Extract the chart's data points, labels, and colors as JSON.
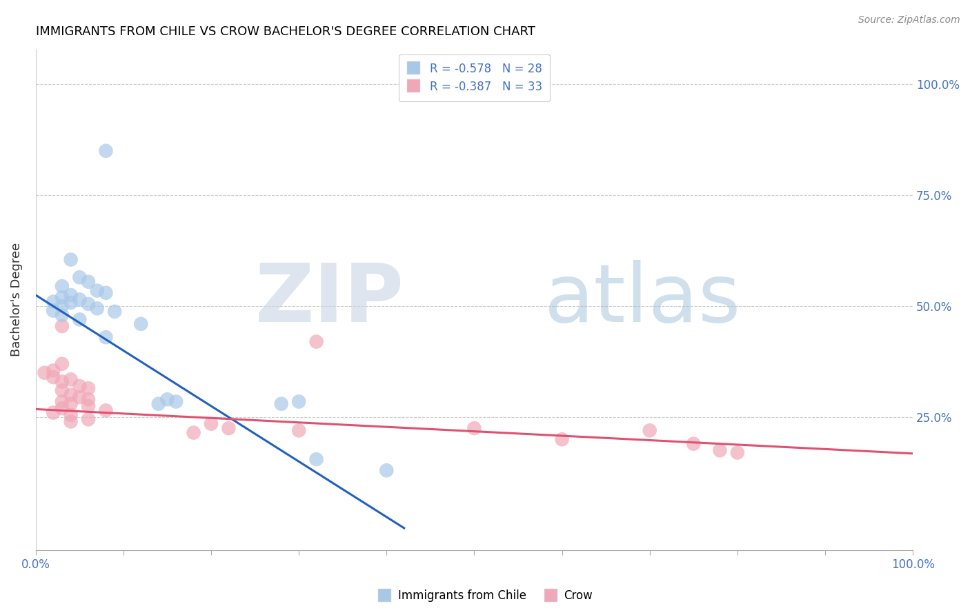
{
  "title": "IMMIGRANTS FROM CHILE VS CROW BACHELOR'S DEGREE CORRELATION CHART",
  "source": "Source: ZipAtlas.com",
  "ylabel": "Bachelor's Degree",
  "blue_color": "#A8C8E8",
  "pink_color": "#F0A8B8",
  "blue_line_color": "#2060C0",
  "pink_line_color": "#E05070",
  "blue_scatter": [
    [
      0.008,
      0.85
    ],
    [
      0.004,
      0.605
    ],
    [
      0.005,
      0.565
    ],
    [
      0.006,
      0.555
    ],
    [
      0.003,
      0.545
    ],
    [
      0.007,
      0.535
    ],
    [
      0.008,
      0.53
    ],
    [
      0.004,
      0.525
    ],
    [
      0.003,
      0.52
    ],
    [
      0.005,
      0.515
    ],
    [
      0.002,
      0.51
    ],
    [
      0.004,
      0.508
    ],
    [
      0.006,
      0.505
    ],
    [
      0.003,
      0.5
    ],
    [
      0.007,
      0.495
    ],
    [
      0.002,
      0.49
    ],
    [
      0.009,
      0.488
    ],
    [
      0.003,
      0.48
    ],
    [
      0.005,
      0.47
    ],
    [
      0.012,
      0.46
    ],
    [
      0.008,
      0.43
    ],
    [
      0.015,
      0.29
    ],
    [
      0.016,
      0.285
    ],
    [
      0.014,
      0.28
    ],
    [
      0.03,
      0.285
    ],
    [
      0.028,
      0.28
    ],
    [
      0.032,
      0.155
    ],
    [
      0.04,
      0.13
    ]
  ],
  "pink_scatter": [
    [
      0.003,
      0.455
    ],
    [
      0.003,
      0.37
    ],
    [
      0.002,
      0.355
    ],
    [
      0.001,
      0.35
    ],
    [
      0.002,
      0.34
    ],
    [
      0.004,
      0.335
    ],
    [
      0.003,
      0.33
    ],
    [
      0.005,
      0.32
    ],
    [
      0.006,
      0.315
    ],
    [
      0.003,
      0.31
    ],
    [
      0.004,
      0.3
    ],
    [
      0.005,
      0.295
    ],
    [
      0.006,
      0.29
    ],
    [
      0.003,
      0.285
    ],
    [
      0.004,
      0.28
    ],
    [
      0.006,
      0.275
    ],
    [
      0.003,
      0.27
    ],
    [
      0.008,
      0.265
    ],
    [
      0.002,
      0.26
    ],
    [
      0.004,
      0.255
    ],
    [
      0.006,
      0.245
    ],
    [
      0.004,
      0.24
    ],
    [
      0.02,
      0.235
    ],
    [
      0.022,
      0.225
    ],
    [
      0.018,
      0.215
    ],
    [
      0.03,
      0.22
    ],
    [
      0.032,
      0.42
    ],
    [
      0.05,
      0.225
    ],
    [
      0.06,
      0.2
    ],
    [
      0.07,
      0.22
    ],
    [
      0.075,
      0.19
    ],
    [
      0.078,
      0.175
    ],
    [
      0.08,
      0.17
    ]
  ],
  "blue_trendline": [
    [
      0.0,
      0.525
    ],
    [
      0.042,
      0.0
    ]
  ],
  "pink_trendline": [
    [
      0.0,
      0.268
    ],
    [
      0.1,
      0.168
    ]
  ],
  "xlim": [
    0.0,
    0.1
  ],
  "ylim": [
    -0.05,
    1.08
  ],
  "xtick_positions": [
    0.0,
    0.01,
    0.02,
    0.03,
    0.04,
    0.05,
    0.06,
    0.07,
    0.08,
    0.09,
    0.1
  ],
  "ytick_positions": [
    0.25,
    0.5,
    0.75,
    1.0
  ],
  "ytick_labels_right": [
    "25.0%",
    "50.0%",
    "75.0%",
    "100.0%"
  ],
  "legend1_text": "R = -0.578   N = 28",
  "legend2_text": "R = -0.387   N = 33",
  "legend_bottom_1": "Immigrants from Chile",
  "legend_bottom_2": "Crow"
}
